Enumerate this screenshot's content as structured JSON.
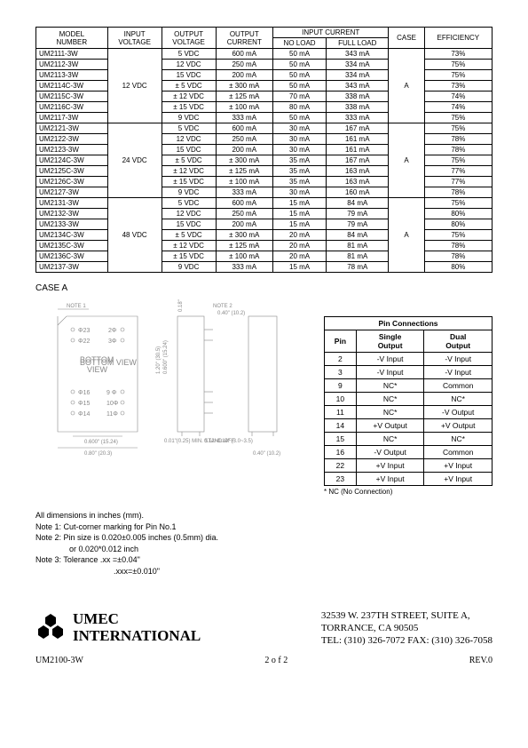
{
  "spec_table": {
    "headers": {
      "model": "MODEL\nNUMBER",
      "input_v": "INPUT\nVOLTAGE",
      "output_v": "OUTPUT\nVOLTAGE",
      "output_c": "OUTPUT\nCURRENT",
      "input_c": "INPUT CURRENT",
      "noload": "NO LOAD",
      "fullload": "FULL LOAD",
      "case": "CASE",
      "eff": "EFFICIENCY"
    },
    "groups": [
      {
        "input_v": "12 VDC",
        "case": "A",
        "rows": [
          {
            "model": "UM2111-3W",
            "ov": "5 VDC",
            "oc": "600 mA",
            "nl": "50 mA",
            "fl": "343 mA",
            "eff": "73%"
          },
          {
            "model": "UM2112-3W",
            "ov": "12 VDC",
            "oc": "250 mA",
            "nl": "50 mA",
            "fl": "334 mA",
            "eff": "75%"
          },
          {
            "model": "UM2113-3W",
            "ov": "15 VDC",
            "oc": "200 mA",
            "nl": "50 mA",
            "fl": "334 mA",
            "eff": "75%"
          },
          {
            "model": "UM2114C-3W",
            "ov": "± 5 VDC",
            "oc": "± 300 mA",
            "nl": "50 mA",
            "fl": "343 mA",
            "eff": "73%"
          },
          {
            "model": "UM2115C-3W",
            "ov": "± 12 VDC",
            "oc": "± 125 mA",
            "nl": "70 mA",
            "fl": "338 mA",
            "eff": "74%"
          },
          {
            "model": "UM2116C-3W",
            "ov": "± 15 VDC",
            "oc": "± 100 mA",
            "nl": "80 mA",
            "fl": "338 mA",
            "eff": "74%"
          },
          {
            "model": "UM2117-3W",
            "ov": "9 VDC",
            "oc": "333 mA",
            "nl": "50 mA",
            "fl": "333 mA",
            "eff": "75%"
          }
        ]
      },
      {
        "input_v": "24 VDC",
        "case": "A",
        "rows": [
          {
            "model": "UM2121-3W",
            "ov": "5 VDC",
            "oc": "600 mA",
            "nl": "30 mA",
            "fl": "167 mA",
            "eff": "75%"
          },
          {
            "model": "UM2122-3W",
            "ov": "12 VDC",
            "oc": "250 mA",
            "nl": "30 mA",
            "fl": "161 mA",
            "eff": "78%"
          },
          {
            "model": "UM2123-3W",
            "ov": "15 VDC",
            "oc": "200 mA",
            "nl": "30 mA",
            "fl": "161 mA",
            "eff": "78%"
          },
          {
            "model": "UM2124C-3W",
            "ov": "± 5 VDC",
            "oc": "± 300 mA",
            "nl": "35 mA",
            "fl": "167 mA",
            "eff": "75%"
          },
          {
            "model": "UM2125C-3W",
            "ov": "± 12 VDC",
            "oc": "± 125 mA",
            "nl": "35 mA",
            "fl": "163 mA",
            "eff": "77%"
          },
          {
            "model": "UM2126C-3W",
            "ov": "± 15 VDC",
            "oc": "± 100 mA",
            "nl": "35 mA",
            "fl": "163 mA",
            "eff": "77%"
          },
          {
            "model": "UM2127-3W",
            "ov": "9 VDC",
            "oc": "333 mA",
            "nl": "30 mA",
            "fl": "160 mA",
            "eff": "78%"
          }
        ]
      },
      {
        "input_v": "48 VDC",
        "case": "A",
        "rows": [
          {
            "model": "UM2131-3W",
            "ov": "5 VDC",
            "oc": "600 mA",
            "nl": "15 mA",
            "fl": "84 mA",
            "eff": "75%"
          },
          {
            "model": "UM2132-3W",
            "ov": "12 VDC",
            "oc": "250 mA",
            "nl": "15 mA",
            "fl": "79 mA",
            "eff": "80%"
          },
          {
            "model": "UM2133-3W",
            "ov": "15 VDC",
            "oc": "200 mA",
            "nl": "15 mA",
            "fl": "79 mA",
            "eff": "80%"
          },
          {
            "model": "UM2134C-3W",
            "ov": "± 5 VDC",
            "oc": "± 300 mA",
            "nl": "20 mA",
            "fl": "84 mA",
            "eff": "75%"
          },
          {
            "model": "UM2135C-3W",
            "ov": "± 12 VDC",
            "oc": "± 125 mA",
            "nl": "20 mA",
            "fl": "81 mA",
            "eff": "78%"
          },
          {
            "model": "UM2136C-3W",
            "ov": "± 15 VDC",
            "oc": "± 100 mA",
            "nl": "20 mA",
            "fl": "81 mA",
            "eff": "78%"
          },
          {
            "model": "UM2137-3W",
            "ov": "9 VDC",
            "oc": "333 mA",
            "nl": "15 mA",
            "fl": "78 mA",
            "eff": "80%"
          }
        ]
      }
    ]
  },
  "case_label": "CASE A",
  "diagram": {
    "note1": "NOTE 1",
    "note2": "NOTE 2",
    "bottom_view": "BOTTOM\nVIEW",
    "pins": [
      "Φ23",
      "Φ22",
      "2Φ",
      "3Φ",
      "Φ16",
      "Φ15",
      "Φ14",
      "9 Φ",
      "10Φ",
      "11Φ"
    ],
    "dims": {
      "w060": "0.600\"\n(15.24)",
      "w080": "0.80\"\n(20.3)",
      "h120": "1.20\"\n(30.5)",
      "h060": "0.600\"\n(15.24)",
      "h018": "0.18\"\n(4.6)",
      "w040": "0.40\"\n(10.2)",
      "standoff": "0.01\"(0.25) MIN.\nSTAND-OFF",
      "pinlen": "0.12~0.14\"\n(3.0~3.5)",
      "depth": "0.40\"\n(10.2)"
    }
  },
  "pin_table": {
    "title": "Pin Connections",
    "headers": {
      "pin": "Pin",
      "single": "Single\nOutput",
      "dual": "Dual\nOutput"
    },
    "rows": [
      {
        "pin": "2",
        "s": "-V Input",
        "d": "-V Input"
      },
      {
        "pin": "3",
        "s": "-V Input",
        "d": "-V Input"
      },
      {
        "pin": "9",
        "s": "NC*",
        "d": "Common"
      },
      {
        "pin": "10",
        "s": "NC*",
        "d": "NC*"
      },
      {
        "pin": "11",
        "s": "NC*",
        "d": "-V Output"
      },
      {
        "pin": "14",
        "s": "+V Output",
        "d": "+V Output"
      },
      {
        "pin": "15",
        "s": "NC*",
        "d": "NC*"
      },
      {
        "pin": "16",
        "s": "-V Output",
        "d": "Common"
      },
      {
        "pin": "22",
        "s": "+V Input",
        "d": "+V Input"
      },
      {
        "pin": "23",
        "s": "+V Input",
        "d": "+V Input"
      }
    ],
    "nc_note": "* NC (No Connection)"
  },
  "notes": {
    "l1": "All dimensions in inches (mm).",
    "l2": "Note 1: Cut-corner marking for Pin No.1",
    "l3": "Note 2: Pin size is 0.020±0.005 inches (0.5mm) dia.",
    "l4": "or 0.020*0.012 inch",
    "l5": "Note 3: Tolerance .xx =±0.04\"",
    "l6": ".xxx=±0.010\""
  },
  "company": {
    "name1": "UMEC",
    "name2": "INTERNATIONAL",
    "addr1": "32539 W. 237TH STREET, SUITE A,",
    "addr2": "TORRANCE, CA 90505",
    "addr3": "TEL: (310) 326-7072  FAX: (310) 326-7058"
  },
  "footer": {
    "part": "UM2100-3W",
    "page": "2   o f   2",
    "rev": "REV.0"
  },
  "colors": {
    "text": "#000000",
    "line": "#000000",
    "diagram_line": "#808080",
    "bg": "#ffffff"
  }
}
